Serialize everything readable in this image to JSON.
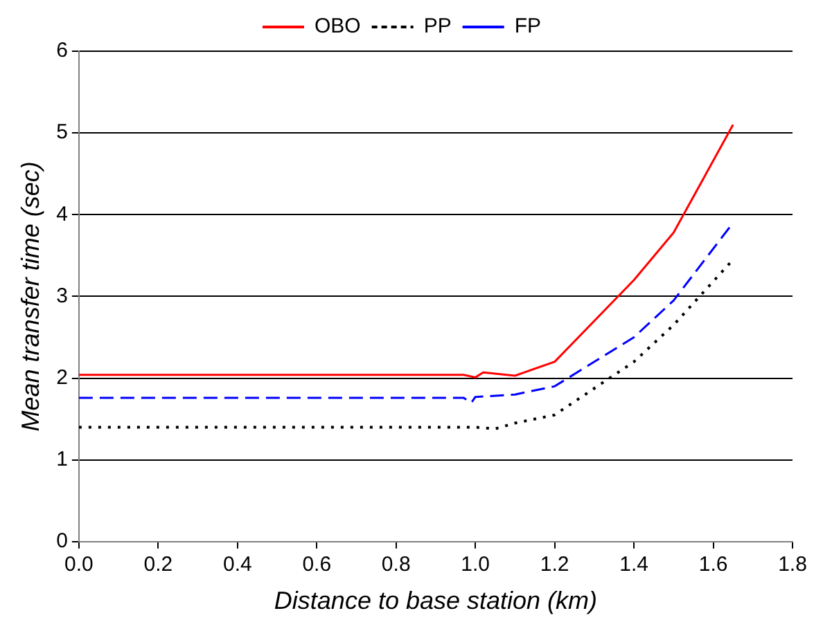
{
  "chart_data": {
    "type": "line",
    "xlabel": "Distance to base station (km)",
    "ylabel": "Mean transfer time (sec)",
    "xlim": [
      0,
      1.8
    ],
    "xticks": [
      {
        "value": 0,
        "label": "0.0"
      },
      {
        "value": 0.2,
        "label": "0.2"
      },
      {
        "value": 0.4,
        "label": "0.4"
      },
      {
        "value": 0.6,
        "label": "0.6"
      },
      {
        "value": 0.8,
        "label": "0.8"
      },
      {
        "value": 1,
        "label": "1.0"
      },
      {
        "value": 1.2,
        "label": "1.2"
      },
      {
        "value": 1.4,
        "label": "1.4"
      },
      {
        "value": 1.6,
        "label": "1.6"
      },
      {
        "value": 1.8,
        "label": "1.8"
      }
    ],
    "ylim": [
      0,
      6
    ],
    "yticks": [
      0,
      1,
      2,
      3,
      4,
      5,
      6
    ],
    "grid": "y",
    "legend": "top",
    "marker": "none",
    "series": [
      {
        "name": "OBO",
        "color": "#ff0000",
        "line_style": "solid",
        "x": [
          0,
          0.97,
          1.0,
          1.02,
          1.1,
          1.2,
          1.4,
          1.5,
          1.65
        ],
        "values": [
          2.04,
          2.04,
          2.01,
          2.07,
          2.03,
          2.2,
          3.2,
          3.78,
          5.1
        ]
      },
      {
        "name": "PP",
        "color": "#000000",
        "line_style": "dotted",
        "x": [
          0,
          0.97,
          1.0,
          1.05,
          1.1,
          1.2,
          1.4,
          1.5,
          1.65
        ],
        "values": [
          1.4,
          1.4,
          1.4,
          1.38,
          1.45,
          1.55,
          2.2,
          2.65,
          3.45
        ]
      },
      {
        "name": "FP",
        "color": "#0000ff",
        "line_style": "dashed",
        "x": [
          0,
          0.97,
          0.99,
          1.0,
          1.1,
          1.2,
          1.4,
          1.5,
          1.65
        ],
        "values": [
          1.76,
          1.76,
          1.7,
          1.77,
          1.8,
          1.9,
          2.5,
          2.95,
          3.9
        ]
      }
    ]
  }
}
